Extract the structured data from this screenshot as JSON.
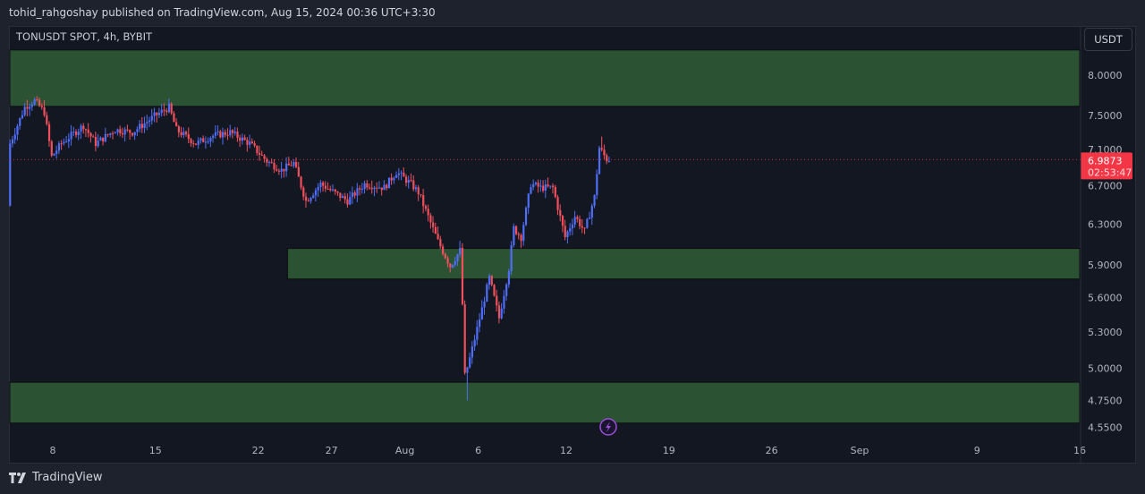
{
  "header": {
    "publisher_line": "tohid_rahgoshay published on TradingView.com, Aug 15, 2024 00:36 UTC+3:30"
  },
  "chart_header": {
    "symbol_label": "TONUSDT SPOT, 4h, BYBIT",
    "currency_button": "USDT"
  },
  "footer": {
    "brand": "TradingView",
    "logo_icon": "tradingview-logo-icon"
  },
  "colors": {
    "up": "#4f6ef7",
    "down": "#f0505c",
    "zone": "#2b5233",
    "price_tag": "#f23645",
    "event_icon": "#9c4fd6"
  },
  "chart_data": {
    "type": "candlestick",
    "scale": "log",
    "interval": "4h",
    "ylim": [
      4.55,
      8.3
    ],
    "y_ticks": [
      "8.0000",
      "7.5000",
      "7.1000",
      "6.7000",
      "6.3000",
      "5.9000",
      "5.6000",
      "5.3000",
      "5.0000",
      "4.7500",
      "4.5500"
    ],
    "x_ticks": [
      {
        "label": "8",
        "date": "2024-07-08"
      },
      {
        "label": "15",
        "date": "2024-07-15"
      },
      {
        "label": "22",
        "date": "2024-07-22"
      },
      {
        "label": "27",
        "date": "2024-07-27"
      },
      {
        "label": "Aug",
        "date": "2024-08-01"
      },
      {
        "label": "6",
        "date": "2024-08-06"
      },
      {
        "label": "12",
        "date": "2024-08-12"
      },
      {
        "label": "19",
        "date": "2024-08-19"
      },
      {
        "label": "26",
        "date": "2024-08-26"
      },
      {
        "label": "Sep",
        "date": "2024-09-01"
      },
      {
        "label": "9",
        "date": "2024-09-09"
      },
      {
        "label": "16",
        "date": "2024-09-16"
      }
    ],
    "price_path": [
      [
        "2024-07-05T00:00",
        6.49
      ],
      [
        "2024-07-05T04:00",
        7.17
      ],
      [
        "2024-07-06T04:00",
        7.6
      ],
      [
        "2024-07-06T20:00",
        7.68
      ],
      [
        "2024-07-07T12:00",
        7.54
      ],
      [
        "2024-07-08T00:00",
        7.02
      ],
      [
        "2024-07-08T16:00",
        7.17
      ],
      [
        "2024-07-10T04:00",
        7.38
      ],
      [
        "2024-07-11T00:00",
        7.17
      ],
      [
        "2024-07-12T08:00",
        7.33
      ],
      [
        "2024-07-13T12:00",
        7.3
      ],
      [
        "2024-07-15T00:00",
        7.49
      ],
      [
        "2024-07-16T00:00",
        7.6
      ],
      [
        "2024-07-16T12:00",
        7.33
      ],
      [
        "2024-07-17T20:00",
        7.17
      ],
      [
        "2024-07-19T00:00",
        7.26
      ],
      [
        "2024-07-20T04:00",
        7.3
      ],
      [
        "2024-07-21T12:00",
        7.17
      ],
      [
        "2024-07-22T16:00",
        6.97
      ],
      [
        "2024-07-23T16:00",
        6.87
      ],
      [
        "2024-07-24T12:00",
        6.95
      ],
      [
        "2024-07-25T08:00",
        6.54
      ],
      [
        "2024-07-26T08:00",
        6.72
      ],
      [
        "2024-07-28T04:00",
        6.54
      ],
      [
        "2024-07-29T08:00",
        6.72
      ],
      [
        "2024-07-30T16:00",
        6.68
      ],
      [
        "2024-07-31T12:00",
        6.85
      ],
      [
        "2024-08-01T12:00",
        6.72
      ],
      [
        "2024-08-02T00:00",
        6.63
      ],
      [
        "2024-08-03T08:00",
        6.13
      ],
      [
        "2024-08-04T04:00",
        5.89
      ],
      [
        "2024-08-04T20:00",
        6.04
      ],
      [
        "2024-08-05T00:00",
        5.54
      ],
      [
        "2024-08-05T04:00",
        4.94
      ],
      [
        "2024-08-05T12:00",
        5.08
      ],
      [
        "2024-08-06T08:00",
        5.5
      ],
      [
        "2024-08-06T20:00",
        5.78
      ],
      [
        "2024-08-07T12:00",
        5.42
      ],
      [
        "2024-08-08T04:00",
        5.87
      ],
      [
        "2024-08-08T12:00",
        6.26
      ],
      [
        "2024-08-09T00:00",
        6.17
      ],
      [
        "2024-08-09T16:00",
        6.72
      ],
      [
        "2024-08-10T08:00",
        6.68
      ],
      [
        "2024-08-11T04:00",
        6.68
      ],
      [
        "2024-08-12T00:00",
        6.17
      ],
      [
        "2024-08-12T16:00",
        6.38
      ],
      [
        "2024-08-13T08:00",
        6.23
      ],
      [
        "2024-08-14T00:00",
        6.58
      ],
      [
        "2024-08-14T08:00",
        7.12
      ],
      [
        "2024-08-14T20:00",
        6.99
      ]
    ],
    "low_wick": {
      "date": "2024-08-05T04:00",
      "price": 4.75
    },
    "high_wick": {
      "date": "2024-08-14T08:00",
      "price": 7.25
    },
    "zones": [
      {
        "from_date": "2024-07-05",
        "to_date": "2024-09-16",
        "top": 8.33,
        "bottom": 7.61
      },
      {
        "from_date": "2024-07-24",
        "to_date": "2024-09-16",
        "top": 6.06,
        "bottom": 5.77
      },
      {
        "from_date": "2024-07-05",
        "to_date": "2024-09-16",
        "top": 4.89,
        "bottom": 4.58
      }
    ],
    "last_price": {
      "value": "6.9873",
      "countdown": "02:53:47"
    }
  }
}
